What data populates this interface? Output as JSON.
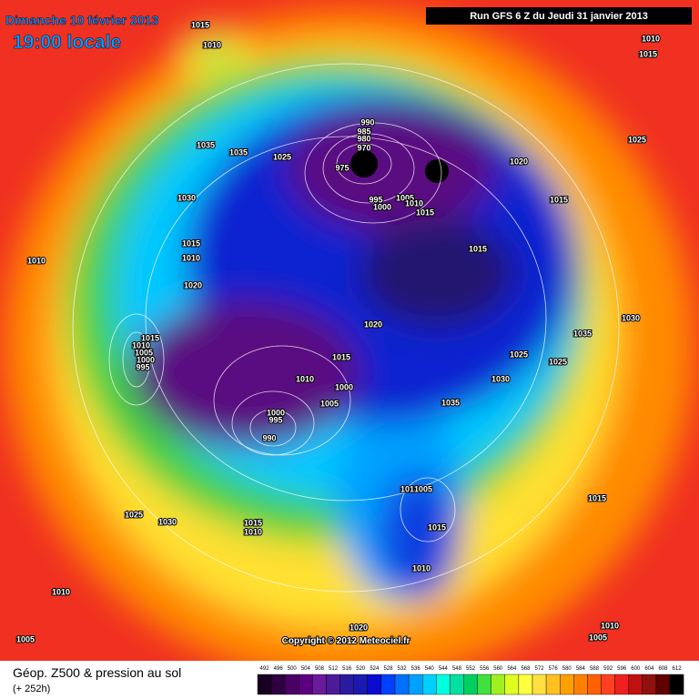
{
  "header": {
    "date": "Dimanche 10 février 2013",
    "time": "19:00 locale",
    "run": "Run GFS 6 Z du Jeudi 31 janvier 2013"
  },
  "map": {
    "isobar_labels": [
      1015,
      1010,
      1035,
      1035,
      1025,
      1030,
      1015,
      1010,
      1010,
      1020,
      990,
      985,
      980,
      970,
      975,
      995,
      1000,
      1005,
      1010,
      1015,
      1020,
      1025,
      1015,
      1015,
      1010,
      1015,
      1020,
      1015,
      1010,
      1000,
      1005,
      1000,
      995,
      990,
      1015,
      1010,
      1005,
      1000,
      995,
      1030,
      1035,
      1030,
      1035,
      1025,
      1025,
      1010,
      1005,
      1015,
      1010,
      1025,
      1030,
      1015,
      1010,
      1015,
      1010,
      1005,
      1020,
      1010,
      1005
    ],
    "copyright": "Copyright © 2012 Meteociel.fr"
  },
  "footer": {
    "title": "Géop. Z500 & pression au sol",
    "lead": "(+ 252h)"
  },
  "colorbar": {
    "values": [
      492,
      496,
      500,
      504,
      508,
      512,
      516,
      520,
      524,
      528,
      532,
      536,
      540,
      544,
      548,
      552,
      556,
      560,
      564,
      568,
      572,
      576,
      580,
      584,
      588,
      592,
      596,
      600,
      604,
      608,
      612
    ],
    "colors": [
      "#1a0020",
      "#2e0040",
      "#4b0066",
      "#5c0080",
      "#6a1a9a",
      "#4d1a99",
      "#2a1aa0",
      "#1a1ab0",
      "#0a0ad0",
      "#0040ff",
      "#0070ff",
      "#00a0ff",
      "#00d0ff",
      "#00ffe0",
      "#00e0a0",
      "#00d060",
      "#40e040",
      "#a0f020",
      "#e0ff20",
      "#ffff40",
      "#ffe040",
      "#ffc020",
      "#ffa000",
      "#ff8000",
      "#ff6000",
      "#ff4020",
      "#f02020",
      "#c01010",
      "#901010",
      "#600000",
      "#000000"
    ]
  }
}
